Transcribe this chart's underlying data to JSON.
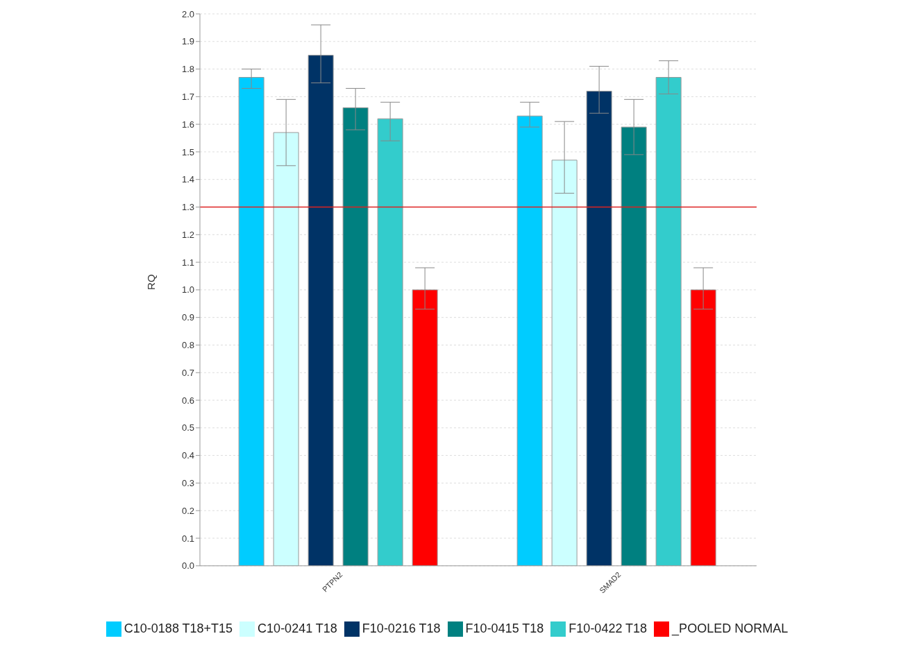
{
  "chart_data": {
    "type": "bar",
    "ylabel": "RQ",
    "categories": [
      "PTPN2",
      "SMAD2"
    ],
    "series": [
      {
        "name": "C10-0188 T18+T15",
        "color": "#00ccff",
        "values": [
          1.77,
          1.63
        ],
        "errors": [
          [
            1.73,
            1.8
          ],
          [
            1.59,
            1.68
          ]
        ]
      },
      {
        "name": "C10-0241 T18",
        "color": "#ccffff",
        "values": [
          1.57,
          1.47
        ],
        "errors": [
          [
            1.45,
            1.69
          ],
          [
            1.35,
            1.61
          ]
        ]
      },
      {
        "name": "F10-0216 T18",
        "color": "#003366",
        "values": [
          1.85,
          1.72
        ],
        "errors": [
          [
            1.75,
            1.96
          ],
          [
            1.64,
            1.81
          ]
        ]
      },
      {
        "name": "F10-0415 T18",
        "color": "#008080",
        "values": [
          1.66,
          1.59
        ],
        "errors": [
          [
            1.58,
            1.73
          ],
          [
            1.49,
            1.69
          ]
        ]
      },
      {
        "name": "F10-0422 T18",
        "color": "#33cccc",
        "values": [
          1.62,
          1.77
        ],
        "errors": [
          [
            1.54,
            1.68
          ],
          [
            1.71,
            1.83
          ]
        ]
      },
      {
        "name": "_POOLED NORMAL",
        "color": "#ff0000",
        "values": [
          1.0,
          1.0
        ],
        "errors": [
          [
            0.93,
            1.08
          ],
          [
            0.93,
            1.08
          ]
        ]
      }
    ],
    "ylim": [
      0,
      2.0
    ],
    "yticks": [
      {
        "value": 0,
        "label": "0.0"
      },
      {
        "value": 0.1,
        "label": "0.1"
      },
      {
        "value": 0.2,
        "label": "0.2"
      },
      {
        "value": 0.3,
        "label": "0.3"
      },
      {
        "value": 0.4,
        "label": "0.4"
      },
      {
        "value": 0.5,
        "label": "0.5"
      },
      {
        "value": 0.6,
        "label": "0.6"
      },
      {
        "value": 0.7,
        "label": "0.7"
      },
      {
        "value": 0.8,
        "label": "0.8"
      },
      {
        "value": 0.9,
        "label": "0.9"
      },
      {
        "value": 1.0,
        "label": "1.0"
      },
      {
        "value": 1.1,
        "label": "1.1"
      },
      {
        "value": 1.2,
        "label": "1.2"
      },
      {
        "value": 1.3,
        "label": "1.3"
      },
      {
        "value": 1.4,
        "label": "1.4"
      },
      {
        "value": 1.5,
        "label": "1.5"
      },
      {
        "value": 1.6,
        "label": "1.6"
      },
      {
        "value": 1.7,
        "label": "1.7"
      },
      {
        "value": 1.8,
        "label": "1.8"
      },
      {
        "value": 1.9,
        "label": "1.9"
      },
      {
        "value": 2.0,
        "label": "2.0"
      }
    ],
    "ref_lines": [
      {
        "axis": "y",
        "value": 1.3,
        "color": "#dd2222"
      }
    ],
    "grid": "y",
    "legend": "bottom"
  }
}
